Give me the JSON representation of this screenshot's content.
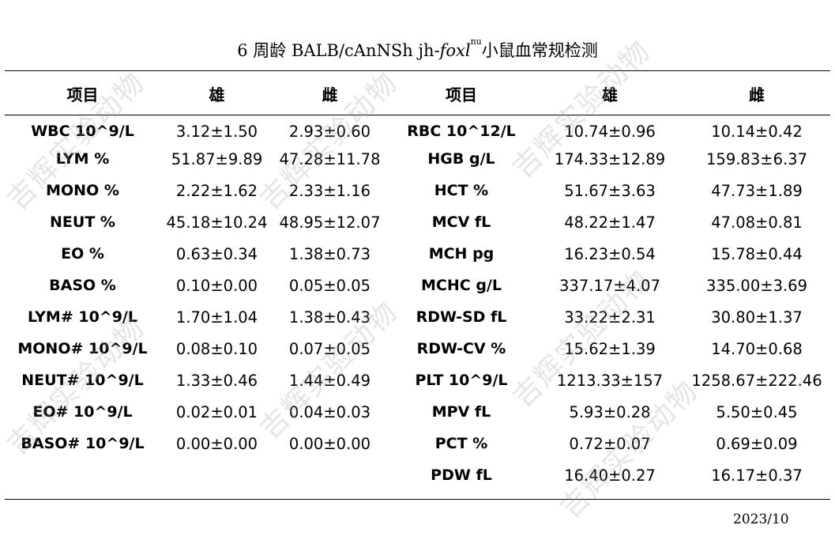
{
  "title": {
    "prefix": "6 周龄 BALB/cAnNSh jh-",
    "gene": "foxl",
    "superscript": "nu",
    "suffix": "小鼠血常规检测"
  },
  "headers": [
    "项目",
    "雄",
    "雌",
    "项目",
    "雄",
    "雌"
  ],
  "rows": [
    [
      "WBC 10^9/L",
      "3.12±1.50",
      "2.93±0.60",
      "RBC 10^12/L",
      "10.74±0.96",
      "10.14±0.42"
    ],
    [
      "LYM %",
      "51.87±9.89",
      "47.28±11.78",
      "HGB g/L",
      "174.33±12.89",
      "159.83±6.37"
    ],
    [
      "MONO %",
      "2.22±1.62",
      "2.33±1.16",
      "HCT %",
      "51.67±3.63",
      "47.73±1.89"
    ],
    [
      "NEUT %",
      "45.18±10.24",
      "48.95±12.07",
      "MCV fL",
      "48.22±1.47",
      "47.08±0.81"
    ],
    [
      "EO %",
      "0.63±0.34",
      "1.38±0.73",
      "MCH pg",
      "16.23±0.54",
      "15.78±0.44"
    ],
    [
      "BASO %",
      "0.10±0.00",
      "0.05±0.05",
      "MCHC g/L",
      "337.17±4.07",
      "335.00±3.69"
    ],
    [
      "LYM# 10^9/L",
      "1.70±1.04",
      "1.38±0.43",
      "RDW-SD fL",
      "33.22±2.31",
      "30.80±1.37"
    ],
    [
      "MONO# 10^9/L",
      "0.08±0.10",
      "0.07±0.05",
      "RDW-CV %",
      "15.62±1.39",
      "14.70±0.68"
    ],
    [
      "NEUT# 10^9/L",
      "1.33±0.46",
      "1.44±0.49",
      "PLT 10^9/L",
      "1213.33±157",
      "1258.67±222.46"
    ],
    [
      "EO# 10^9/L",
      "0.02±0.01",
      "0.04±0.03",
      "MPV fL",
      "5.93±0.28",
      "5.50±0.45"
    ],
    [
      "BASO# 10^9/L",
      "0.00±0.00",
      "0.00±0.00",
      "PCT %",
      "0.72±0.07",
      "0.69±0.09"
    ],
    [
      "",
      "",
      "",
      "PDW fL",
      "16.40±0.27",
      "16.17±0.37"
    ]
  ],
  "date": "2023/10",
  "watermark": "吉辉实验动物"
}
